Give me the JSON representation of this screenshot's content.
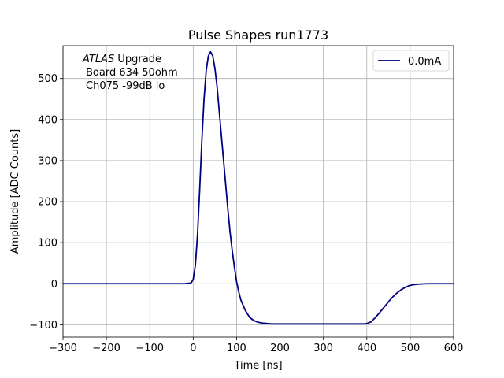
{
  "chart_data": {
    "type": "line",
    "title": "Pulse Shapes run1773",
    "xlabel": "Time [ns]",
    "ylabel": "Amplitude [ADC Counts]",
    "xlim": [
      -300,
      600
    ],
    "ylim": [
      -130,
      580
    ],
    "xticks": [
      -300,
      -200,
      -100,
      0,
      100,
      200,
      300,
      400,
      500,
      600
    ],
    "xtick_labels": [
      "−300",
      "−200",
      "−100",
      "0",
      "100",
      "200",
      "300",
      "400",
      "500",
      "600"
    ],
    "yticks": [
      -100,
      0,
      100,
      200,
      300,
      400,
      500
    ],
    "ytick_labels": [
      "−100",
      "0",
      "100",
      "200",
      "300",
      "400",
      "500"
    ],
    "grid": true,
    "legend_position": "top-right",
    "annotation": {
      "line1_italic": "ATLAS",
      "line1_rest": " Upgrade",
      "line2": "Board 634 50ohm",
      "line3": "Ch075 -99dB lo"
    },
    "series": [
      {
        "name": "0.0mA",
        "color": "#000080",
        "x": [
          -300,
          -200,
          -100,
          -20,
          -5,
          0,
          5,
          10,
          15,
          20,
          25,
          30,
          35,
          40,
          45,
          50,
          55,
          60,
          65,
          70,
          75,
          80,
          85,
          90,
          95,
          100,
          105,
          110,
          120,
          130,
          140,
          150,
          160,
          170,
          180,
          200,
          250,
          300,
          350,
          380,
          395,
          400,
          410,
          420,
          430,
          440,
          450,
          460,
          470,
          480,
          490,
          500,
          510,
          520,
          540,
          560,
          600
        ],
        "y": [
          0,
          0,
          0,
          0,
          2,
          10,
          45,
          120,
          230,
          350,
          450,
          520,
          555,
          565,
          555,
          525,
          480,
          420,
          360,
          300,
          240,
          180,
          125,
          80,
          40,
          5,
          -20,
          -40,
          -65,
          -82,
          -90,
          -94,
          -96,
          -97,
          -98,
          -98,
          -98,
          -98,
          -98,
          -98,
          -98,
          -97,
          -93,
          -82,
          -70,
          -57,
          -44,
          -32,
          -22,
          -14,
          -8,
          -4,
          -2,
          -1,
          0,
          0,
          0
        ]
      }
    ]
  }
}
